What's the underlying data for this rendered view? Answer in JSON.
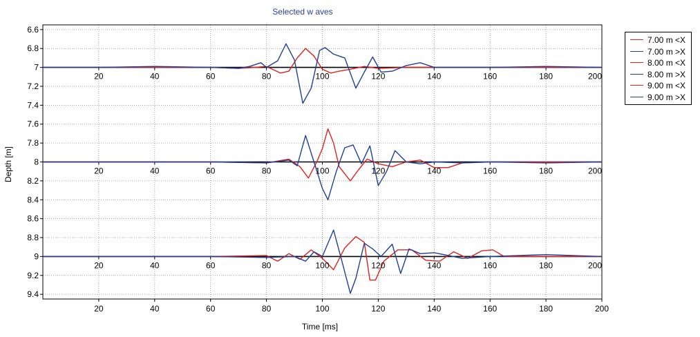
{
  "chart_data": {
    "type": "line",
    "title": "Selected w aves",
    "xlabel": "Time [ms]",
    "ylabel": "Depth [m]",
    "xlim": [
      0,
      200
    ],
    "ylim": [
      6.55,
      9.45
    ],
    "y_inverted": true,
    "grid": true,
    "legend_position": "right",
    "x_ticks": [
      20,
      40,
      60,
      80,
      100,
      120,
      140,
      160,
      180,
      200
    ],
    "y_ticks": [
      "6.6",
      "6.8",
      "7",
      "7.2",
      "7.4",
      "7.6",
      "7.8",
      "8",
      "8.2",
      "8.4",
      "8.6",
      "8.8",
      "9",
      "9.2",
      "9.4"
    ],
    "baselines": [
      7,
      8,
      9
    ],
    "colors": {
      "red": "#e0201c",
      "blue": "#1f3e96",
      "title": "#2840a0"
    },
    "series": [
      {
        "name": "7.00 m <X",
        "color": "#e0201c",
        "baseline": 7,
        "x": [
          0,
          20,
          40,
          60,
          70,
          76,
          80,
          85,
          88,
          91,
          94,
          97,
          100,
          103,
          106,
          110,
          115,
          120,
          130,
          140,
          160,
          180,
          200
        ],
        "y": [
          7,
          7,
          7,
          7,
          7.01,
          7.0,
          6.99,
          7.06,
          7.04,
          6.9,
          6.8,
          6.88,
          7.02,
          7.06,
          7.04,
          7.02,
          6.99,
          7.01,
          7.0,
          7.0,
          7.0,
          7.0,
          7.0
        ]
      },
      {
        "name": "7.00 m >X",
        "color": "#1f3e96",
        "baseline": 7,
        "x": [
          0,
          20,
          40,
          60,
          70,
          74,
          78,
          80,
          84,
          87,
          90,
          93,
          96,
          99,
          101,
          104,
          106,
          108,
          112,
          115,
          118,
          121,
          125,
          130,
          135,
          140,
          160,
          180,
          200
        ],
        "y": [
          7,
          7,
          6.99,
          7.0,
          7.01,
          6.99,
          6.95,
          7.0,
          6.93,
          6.75,
          6.92,
          7.38,
          7.22,
          6.82,
          6.79,
          6.86,
          6.88,
          6.9,
          7.22,
          7.05,
          6.89,
          7.05,
          7.04,
          6.98,
          6.95,
          7.0,
          7.0,
          6.99,
          7.0
        ]
      },
      {
        "name": "8.00 m <X",
        "color": "#e0201c",
        "baseline": 8,
        "x": [
          0,
          20,
          40,
          60,
          80,
          88,
          92,
          95,
          98,
          100,
          102,
          104,
          106,
          110,
          113,
          116,
          120,
          125,
          130,
          135,
          140,
          145,
          150,
          160,
          180,
          200
        ],
        "y": [
          8,
          8,
          8,
          8,
          8.01,
          7.97,
          8.05,
          8.17,
          8.0,
          7.86,
          7.65,
          7.8,
          8.05,
          8.2,
          8.08,
          7.97,
          8.02,
          8.05,
          8.0,
          7.98,
          8.06,
          8.06,
          8.01,
          8.0,
          8.0,
          8.0
        ]
      },
      {
        "name": "8.00 m >X",
        "color": "#1f3e96",
        "baseline": 8,
        "x": [
          0,
          20,
          40,
          60,
          80,
          88,
          91,
          94,
          97,
          100,
          102,
          105,
          108,
          111,
          114,
          117,
          120,
          123,
          126,
          130,
          135,
          140,
          150,
          160,
          180,
          200
        ],
        "y": [
          8,
          8,
          8,
          8,
          8.01,
          7.98,
          8.04,
          7.72,
          8.0,
          8.28,
          8.4,
          8.1,
          7.85,
          7.82,
          8.02,
          7.83,
          8.25,
          8.1,
          7.88,
          8.0,
          8.02,
          8.0,
          8.01,
          8.0,
          8.01,
          8.0
        ]
      },
      {
        "name": "9.00 m <X",
        "color": "#e0201c",
        "baseline": 9,
        "x": [
          0,
          20,
          40,
          60,
          80,
          84,
          88,
          92,
          96,
          100,
          104,
          108,
          112,
          115,
          117,
          119,
          122,
          127,
          132,
          137,
          142,
          147,
          152,
          157,
          161,
          165,
          170,
          180,
          200
        ],
        "y": [
          9,
          9,
          9,
          9,
          8.99,
          9.05,
          8.97,
          9.03,
          8.93,
          9.02,
          9.14,
          8.91,
          8.79,
          8.85,
          9.25,
          9.25,
          9.05,
          8.93,
          8.93,
          9.04,
          9.05,
          8.95,
          9.02,
          8.94,
          8.93,
          9.0,
          9.0,
          9.0,
          9.0
        ]
      },
      {
        "name": "9.00 m >X",
        "color": "#1f3e96",
        "baseline": 9,
        "x": [
          0,
          20,
          40,
          60,
          80,
          90,
          94,
          97,
          100,
          104,
          107,
          110,
          112,
          115,
          118,
          121,
          125,
          128,
          131,
          135,
          140,
          150,
          160,
          180,
          200
        ],
        "y": [
          9,
          9,
          9,
          9,
          9.01,
          9.0,
          9.05,
          8.95,
          9.0,
          8.72,
          9.05,
          9.39,
          9.23,
          8.86,
          8.92,
          9.0,
          8.87,
          9.18,
          8.92,
          8.97,
          8.96,
          9.02,
          9.0,
          8.98,
          9.0
        ]
      }
    ]
  }
}
